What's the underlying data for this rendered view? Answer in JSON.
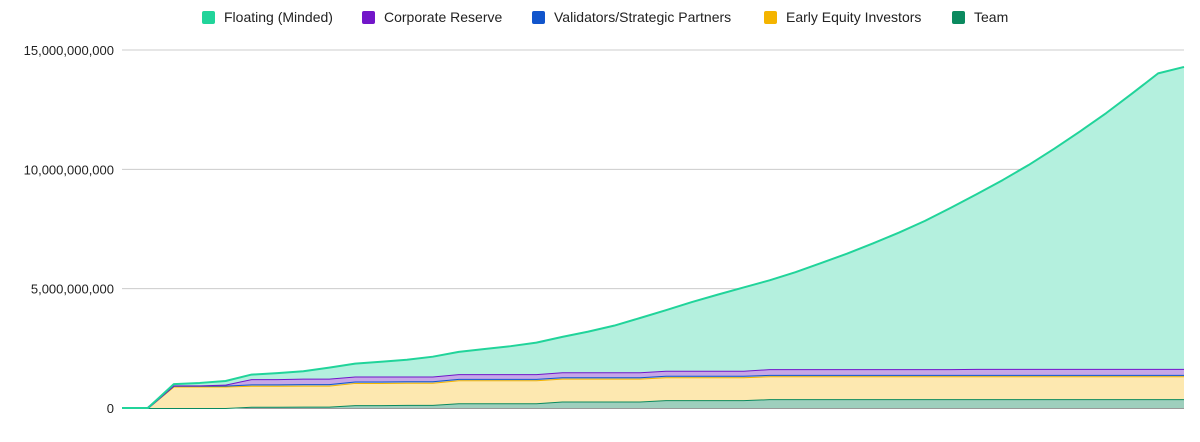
{
  "chart_data": {
    "type": "area",
    "stacked": true,
    "title": "",
    "xlabel": "",
    "ylabel": "",
    "ylim": [
      0,
      15000000000
    ],
    "yticks": [
      0,
      5000000000,
      10000000000,
      15000000000
    ],
    "ytick_labels": [
      "0",
      "5,000,000,000",
      "10,000,000,000",
      "15,000,000,000"
    ],
    "grid": true,
    "legend_position": "top",
    "x": [
      0,
      1,
      2,
      3,
      4,
      5,
      6,
      7,
      8,
      9,
      10,
      11,
      12,
      13,
      14,
      15,
      16,
      17,
      18,
      19,
      20,
      21,
      22,
      23,
      24,
      25,
      26,
      27,
      28,
      29,
      30,
      31,
      32,
      33,
      34,
      35,
      36,
      37,
      38,
      39,
      40,
      41
    ],
    "series": [
      {
        "name": "Team",
        "color": "#0b8a5f",
        "fill": "#9ecfbd",
        "values": [
          0,
          0,
          0,
          0,
          0,
          50000000,
          50000000,
          60000000,
          60000000,
          120000000,
          120000000,
          130000000,
          130000000,
          200000000,
          200000000,
          200000000,
          200000000,
          270000000,
          270000000,
          270000000,
          270000000,
          330000000,
          330000000,
          330000000,
          330000000,
          370000000,
          370000000,
          370000000,
          370000000,
          370000000,
          370000000,
          370000000,
          370000000,
          370000000,
          370000000,
          370000000,
          370000000,
          370000000,
          370000000,
          370000000,
          370000000,
          370000000
        ]
      },
      {
        "name": "Early Equity Investors",
        "color": "#f4b400",
        "fill": "#fde8b0",
        "values": [
          0,
          0,
          900000000,
          900000000,
          900000000,
          880000000,
          880000000,
          880000000,
          880000000,
          930000000,
          930000000,
          930000000,
          930000000,
          960000000,
          960000000,
          960000000,
          960000000,
          960000000,
          960000000,
          960000000,
          960000000,
          960000000,
          960000000,
          960000000,
          960000000,
          960000000,
          960000000,
          960000000,
          960000000,
          960000000,
          960000000,
          960000000,
          960000000,
          960000000,
          960000000,
          960000000,
          960000000,
          960000000,
          960000000,
          960000000,
          960000000,
          960000000
        ]
      },
      {
        "name": "Validators/Strategic Partners",
        "color": "#1155cc",
        "fill": "#a9c1ec",
        "values": [
          0,
          0,
          30000000,
          30000000,
          40000000,
          60000000,
          60000000,
          60000000,
          60000000,
          60000000,
          60000000,
          60000000,
          60000000,
          60000000,
          60000000,
          60000000,
          60000000,
          60000000,
          60000000,
          60000000,
          60000000,
          60000000,
          60000000,
          60000000,
          60000000,
          60000000,
          60000000,
          60000000,
          60000000,
          60000000,
          60000000,
          60000000,
          60000000,
          60000000,
          60000000,
          60000000,
          60000000,
          60000000,
          60000000,
          60000000,
          60000000,
          60000000
        ]
      },
      {
        "name": "Corporate Reserve",
        "color": "#7216c9",
        "fill": "#c6a7e8",
        "values": [
          0,
          0,
          20000000,
          20000000,
          40000000,
          220000000,
          220000000,
          230000000,
          230000000,
          210000000,
          210000000,
          200000000,
          200000000,
          200000000,
          200000000,
          200000000,
          200000000,
          210000000,
          210000000,
          210000000,
          210000000,
          210000000,
          210000000,
          210000000,
          210000000,
          240000000,
          240000000,
          240000000,
          240000000,
          240000000,
          240000000,
          240000000,
          240000000,
          250000000,
          250000000,
          250000000,
          250000000,
          250000000,
          250000000,
          250000000,
          250000000,
          250000000
        ]
      },
      {
        "name": "Floating (Minded)",
        "color": "#21d49a",
        "fill": "#b4f0de",
        "values": [
          0,
          0,
          50000000,
          100000000,
          150000000,
          190000000,
          250000000,
          310000000,
          460000000,
          540000000,
          620000000,
          700000000,
          830000000,
          930000000,
          1050000000,
          1170000000,
          1320000000,
          1480000000,
          1700000000,
          1950000000,
          2270000000,
          2540000000,
          2880000000,
          3190000000,
          3490000000,
          3720000000,
          4060000000,
          4450000000,
          4840000000,
          5270000000,
          5720000000,
          6210000000,
          6760000000,
          7320000000,
          7910000000,
          8540000000,
          9230000000,
          9960000000,
          10720000000,
          11540000000,
          12380000000,
          12650000000
        ]
      }
    ]
  }
}
